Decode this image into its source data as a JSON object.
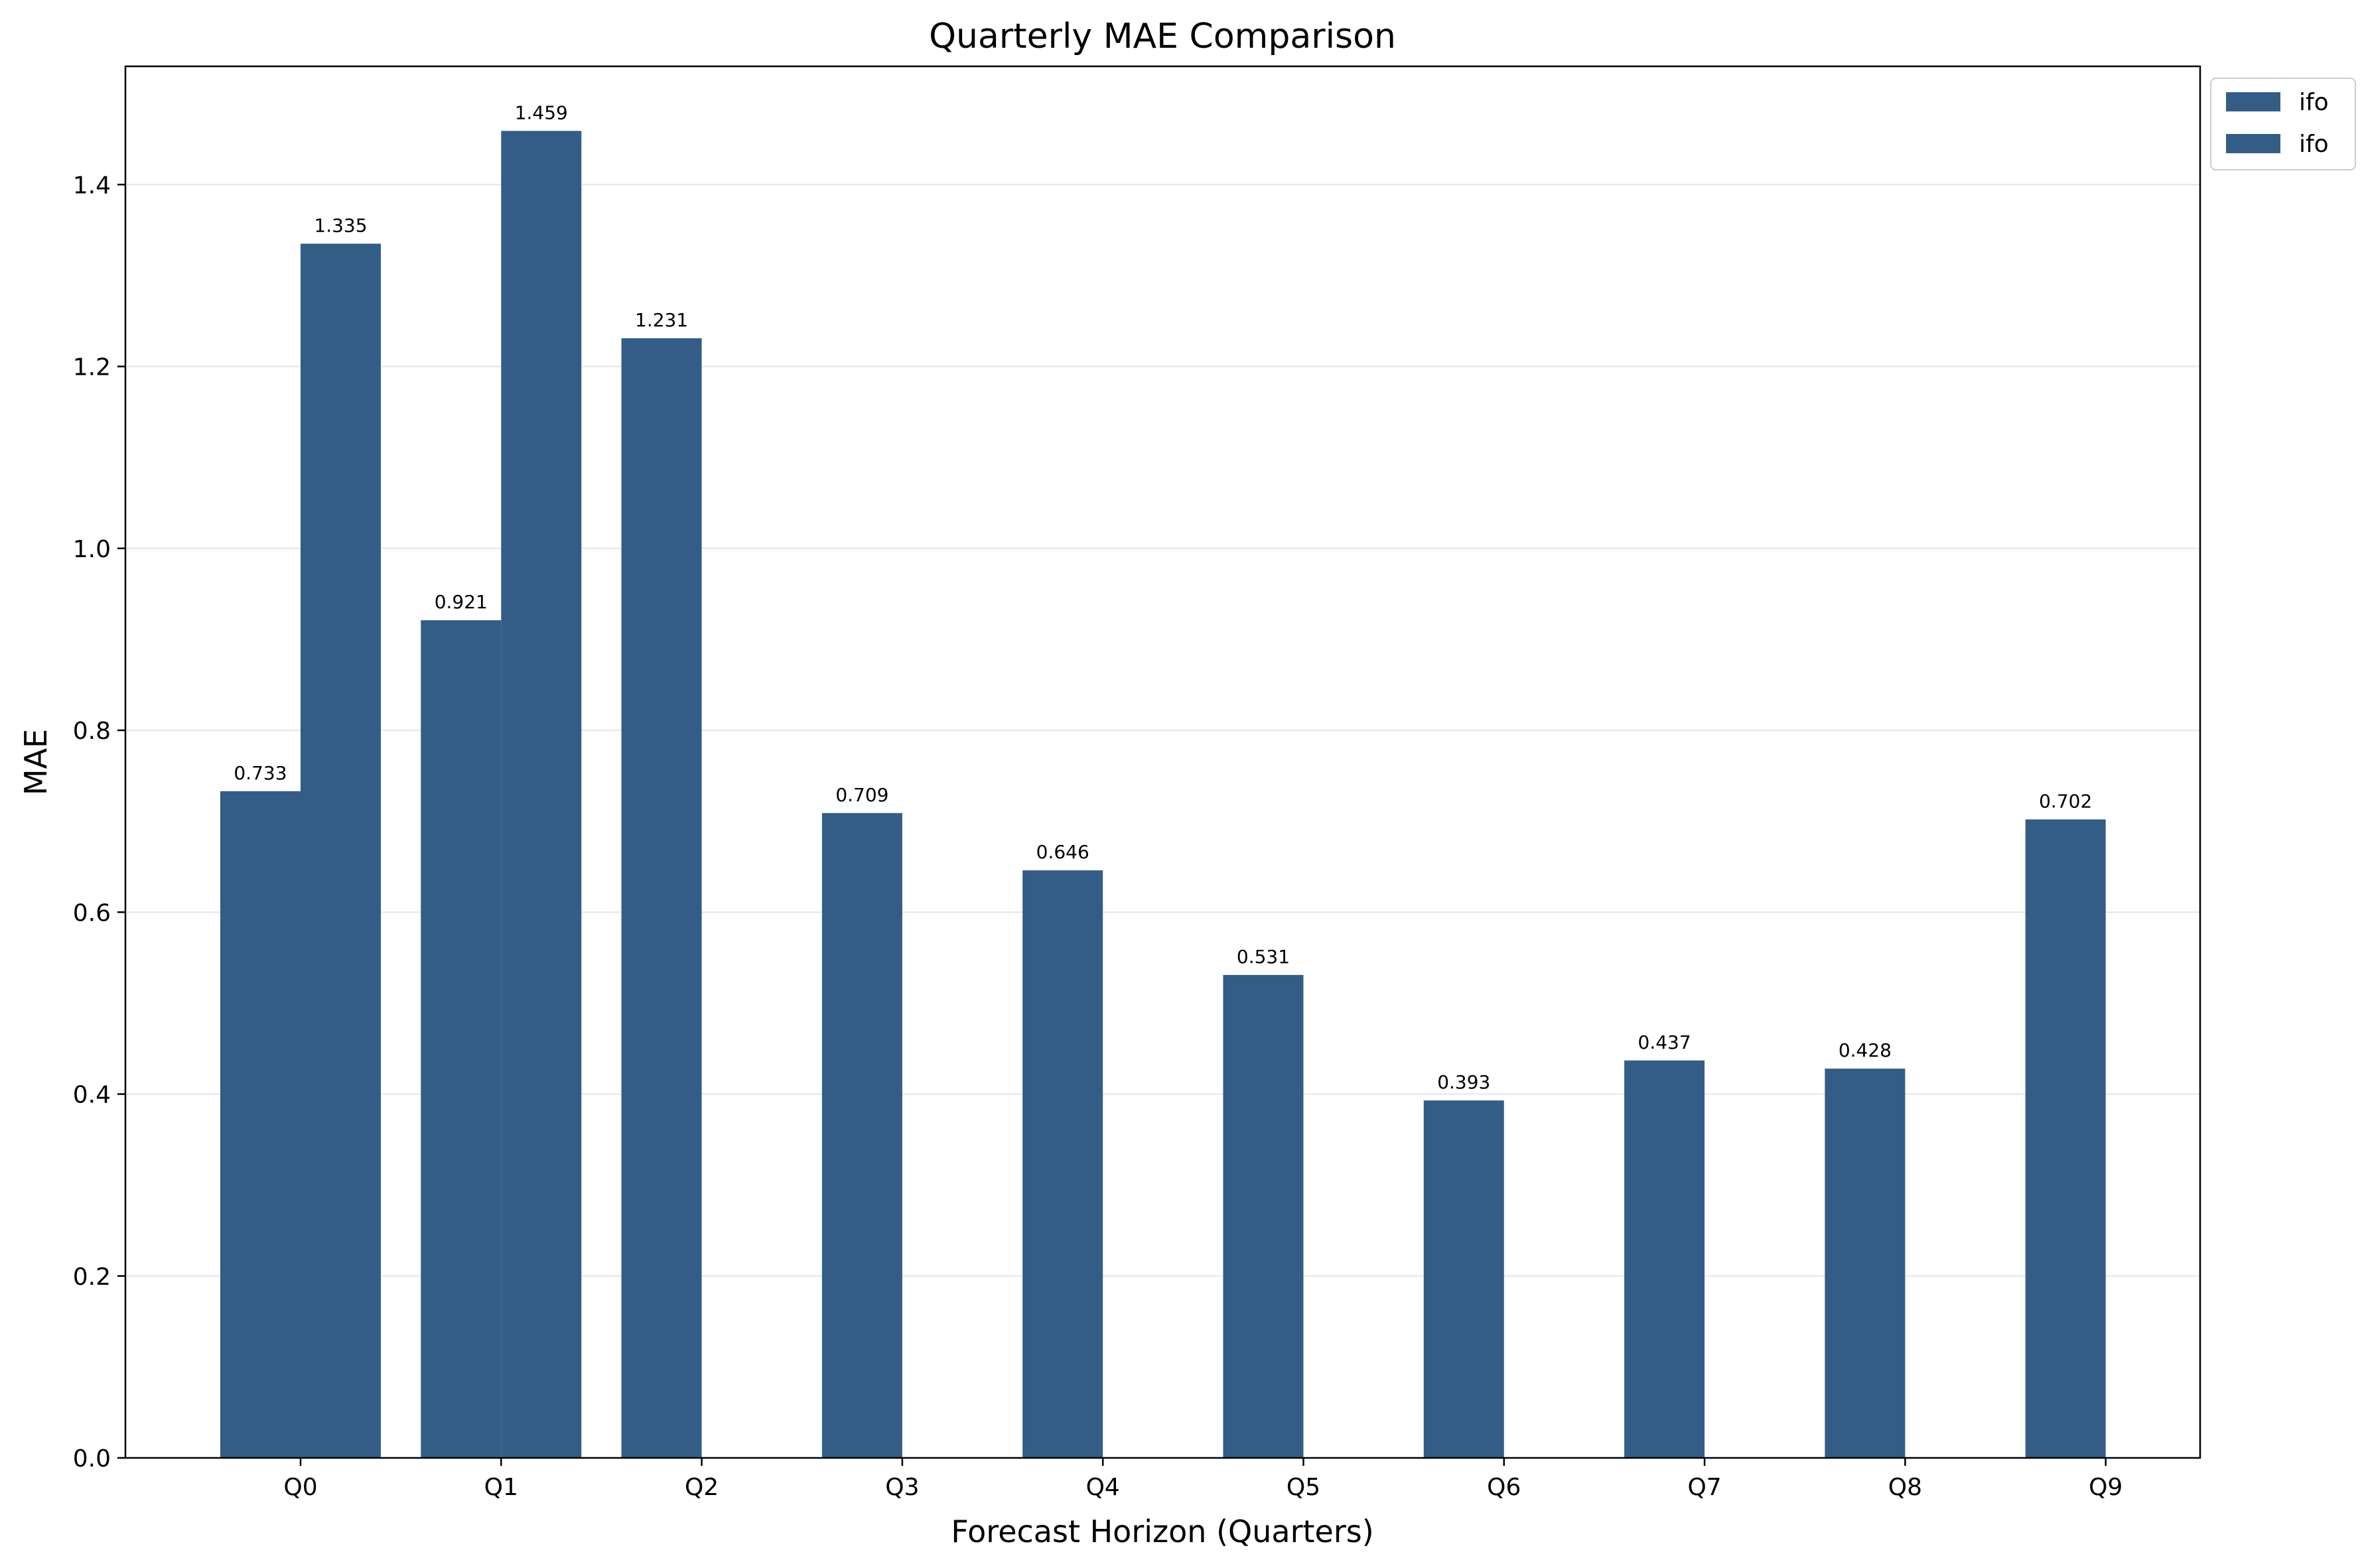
{
  "chart_data": {
    "type": "bar",
    "title": "Quarterly MAE Comparison",
    "xlabel": "Forecast Horizon (Quarters)",
    "ylabel": "MAE",
    "categories": [
      "Q0",
      "Q1",
      "Q2",
      "Q3",
      "Q4",
      "Q5",
      "Q6",
      "Q7",
      "Q8",
      "Q9"
    ],
    "series": [
      {
        "name": "ifo",
        "values": [
          0.733,
          0.921,
          1.231,
          0.709,
          0.646,
          0.531,
          0.393,
          0.437,
          0.428,
          0.702
        ],
        "labels": [
          "0.733",
          "0.921",
          "1.231",
          "0.709",
          "0.646",
          "0.531",
          "0.393",
          "0.437",
          "0.428",
          "0.702"
        ],
        "color": "#335d86"
      },
      {
        "name": "ifo",
        "values": [
          1.335,
          1.459,
          null,
          null,
          null,
          null,
          null,
          null,
          null,
          null
        ],
        "labels": [
          "1.335",
          "1.459",
          null,
          null,
          null,
          null,
          null,
          null,
          null,
          null
        ],
        "color": "#335d86"
      }
    ],
    "ylim": [
      0,
      1.53
    ],
    "yticks": [
      0.0,
      0.2,
      0.4,
      0.6,
      0.8,
      1.0,
      1.2,
      1.4
    ],
    "ytick_labels": [
      "0.0",
      "0.2",
      "0.4",
      "0.6",
      "0.8",
      "1.0",
      "1.2",
      "1.4"
    ],
    "grid": "y",
    "legend_position": "outside top-right"
  }
}
